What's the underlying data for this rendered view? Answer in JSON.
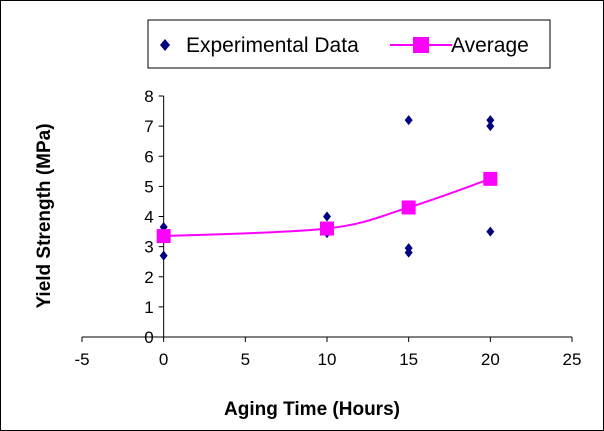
{
  "chart_data": {
    "type": "scatter",
    "xlabel": "Aging Time (Hours)",
    "ylabel": "Yield Strength (MPa)",
    "xlim": [
      -5,
      25
    ],
    "ylim": [
      0,
      8
    ],
    "xticks": [
      -5,
      0,
      5,
      10,
      15,
      20,
      25
    ],
    "yticks": [
      0,
      1,
      2,
      3,
      4,
      5,
      6,
      7,
      8
    ],
    "grid": false,
    "legend_position": "top",
    "series": [
      {
        "name": "Experimental Data",
        "marker": "diamond",
        "color": "#000080",
        "points": [
          [
            0,
            3.65
          ],
          [
            0,
            2.7
          ],
          [
            10,
            4.0
          ],
          [
            10,
            3.45
          ],
          [
            15,
            7.2
          ],
          [
            15,
            2.95
          ],
          [
            15,
            2.8
          ],
          [
            20,
            7.2
          ],
          [
            20,
            7.0
          ],
          [
            20,
            3.5
          ]
        ]
      },
      {
        "name": "Average",
        "marker": "square",
        "color": "#ff00ff",
        "line": "smooth",
        "points": [
          [
            0,
            3.35
          ],
          [
            10,
            3.6
          ],
          [
            15,
            4.3
          ],
          [
            20,
            5.25
          ]
        ]
      }
    ]
  }
}
